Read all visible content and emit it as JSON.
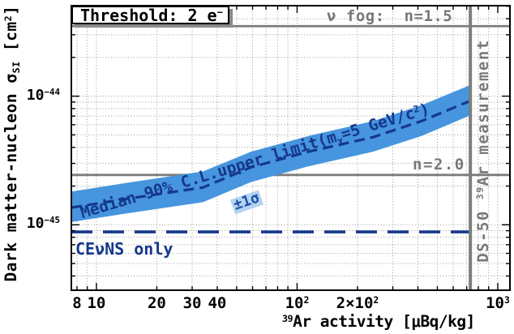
{
  "chart_data": {
    "type": "line",
    "title": "",
    "grid": true,
    "legend": false,
    "colors": {
      "band": "#4695de",
      "navy_line": "#16388c",
      "gray_line": "#7d7d7d",
      "grid_dots": "#9a9a9a",
      "frame": "#000000",
      "sigma_highlight": "rgba(116,176,233,0.55)"
    },
    "x_axis": {
      "scale": "log",
      "domain": [
        7.5,
        1150
      ],
      "label_segments": [
        {
          "t": "39",
          "sup": true
        },
        {
          "t": "Ar activity [μBq/kg]"
        }
      ],
      "ticks": [
        {
          "v": 8,
          "segs": [
            {
              "t": "8"
            }
          ]
        },
        {
          "v": 10,
          "segs": [
            {
              "t": "10"
            }
          ]
        },
        {
          "v": 20,
          "segs": [
            {
              "t": "20"
            }
          ]
        },
        {
          "v": 30,
          "segs": [
            {
              "t": "30"
            }
          ]
        },
        {
          "v": 40,
          "segs": [
            {
              "t": "40"
            }
          ]
        },
        {
          "v": 100,
          "segs": [
            {
              "t": "10"
            },
            {
              "t": "2",
              "sup": true
            }
          ]
        },
        {
          "v": 200,
          "segs": [
            {
              "t": "2×10"
            },
            {
              "t": "2",
              "sup": true
            }
          ]
        },
        {
          "v": 1000,
          "segs": [
            {
              "t": "10"
            },
            {
              "t": "3",
              "sup": true
            }
          ]
        }
      ]
    },
    "y_axis": {
      "scale": "log",
      "domain": [
        3.1e-46,
        5.05e-44
      ],
      "label_segments": [
        {
          "t": "Dark matter-nucleon σ"
        },
        {
          "t": "SI",
          "sub": true
        },
        {
          "t": " [cm"
        },
        {
          "t": "2",
          "sup": true
        },
        {
          "t": "]"
        }
      ],
      "ticks": [
        {
          "v": 1e-44,
          "segs": [
            {
              "t": "10"
            },
            {
              "t": "−44",
              "sup": true
            }
          ]
        },
        {
          "v": 1e-45,
          "segs": [
            {
              "t": "10"
            },
            {
              "t": "−45",
              "sup": true
            }
          ]
        }
      ]
    },
    "series": [
      {
        "name": "nu-fog-line",
        "type": "line",
        "color": "#7d7d7d",
        "width": 2.8,
        "points": [
          [
            7.5,
            3.5e-44
          ],
          [
            1150,
            3.5e-44
          ]
        ]
      },
      {
        "name": "n2-line",
        "type": "line",
        "color": "#7d7d7d",
        "width": 2.8,
        "points": [
          [
            7.5,
            2.44e-45
          ],
          [
            1150,
            2.44e-45
          ]
        ]
      },
      {
        "name": "sigma-band",
        "type": "band",
        "color": "#4695de",
        "upper": [
          [
            7.5,
            1.81e-45
          ],
          [
            13.4,
            2.09e-45
          ],
          [
            34,
            2.6e-45
          ],
          [
            59,
            3.7e-45
          ],
          [
            114,
            4.9e-45
          ],
          [
            239,
            6.4e-45
          ],
          [
            417,
            8.5e-45
          ],
          [
            730,
            1.22e-44
          ]
        ],
        "lower": [
          [
            7.5,
            1.05e-45
          ],
          [
            13.4,
            1.21e-45
          ],
          [
            34,
            1.5e-45
          ],
          [
            59,
            2.15e-45
          ],
          [
            114,
            2.85e-45
          ],
          [
            239,
            3.7e-45
          ],
          [
            417,
            4.9e-45
          ],
          [
            730,
            7.1e-45
          ]
        ]
      },
      {
        "name": "median-limit-line",
        "type": "dashed-line",
        "color": "#16388c",
        "width": 3.2,
        "dash": "13 7",
        "points": [
          [
            7.5,
            1.36e-45
          ],
          [
            13.4,
            1.57e-45
          ],
          [
            34,
            1.95e-45
          ],
          [
            59,
            2.8e-45
          ],
          [
            114,
            3.7e-45
          ],
          [
            239,
            4.8e-45
          ],
          [
            417,
            6.4e-45
          ],
          [
            730,
            9.2e-45
          ]
        ]
      },
      {
        "name": "cevns-only-line",
        "type": "dashed-line",
        "color": "#16388c",
        "width": 3.6,
        "dash": "26 13",
        "points": [
          [
            7.5,
            8.8e-46
          ],
          [
            730,
            8.8e-46
          ]
        ]
      },
      {
        "name": "ds50-line",
        "type": "vline",
        "x": 730,
        "color": "#7d7d7d",
        "width": 4
      }
    ],
    "annotations": {
      "threshold": {
        "segs": [
          {
            "t": "Threshold: 2 e"
          },
          {
            "t": "−",
            "sup": true
          }
        ]
      },
      "nu_fog": {
        "segs": [
          {
            "t": "ν fog:  n=1.5"
          }
        ]
      },
      "n2": {
        "segs": [
          {
            "t": "n=2.0"
          }
        ]
      },
      "ds50": {
        "segs": [
          {
            "t": "DS-50 "
          },
          {
            "t": "39",
            "sup": true
          },
          {
            "t": "Ar measurement"
          }
        ]
      },
      "cevns": {
        "segs": [
          {
            "t": "CEνNS only"
          }
        ]
      },
      "median": {
        "segs": [
          {
            "t": "Median 90% C.L.upper limit(m"
          },
          {
            "t": "χ",
            "sub": true
          },
          {
            "t": "=5 GeV/c"
          },
          {
            "t": "2",
            "sup": true
          },
          {
            "t": ")"
          }
        ]
      },
      "sigma_band": {
        "segs": [
          {
            "t": "±1σ"
          }
        ]
      }
    }
  }
}
